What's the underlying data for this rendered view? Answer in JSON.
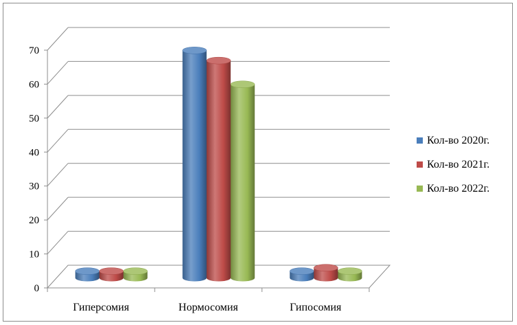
{
  "chart_data": {
    "type": "bar",
    "title": "",
    "xlabel": "",
    "ylabel": "",
    "categories": [
      "Гиперсомия",
      "Нормосомия",
      "Гипосомия"
    ],
    "series": [
      {
        "name": "Кол-во 2020г.",
        "values": [
          2,
          67,
          2
        ],
        "color": "#4a7ebb"
      },
      {
        "name": "Кол-во 2021г.",
        "values": [
          2,
          64,
          3
        ],
        "color": "#be4b48"
      },
      {
        "name": "Кол-во 2022г.",
        "values": [
          2,
          57,
          2
        ],
        "color": "#98b954"
      }
    ],
    "ylim": [
      0,
      70
    ],
    "yticks": [
      "0",
      "10",
      "20",
      "30",
      "40",
      "50",
      "60",
      "70"
    ],
    "grid": true,
    "legend_position": "right"
  }
}
